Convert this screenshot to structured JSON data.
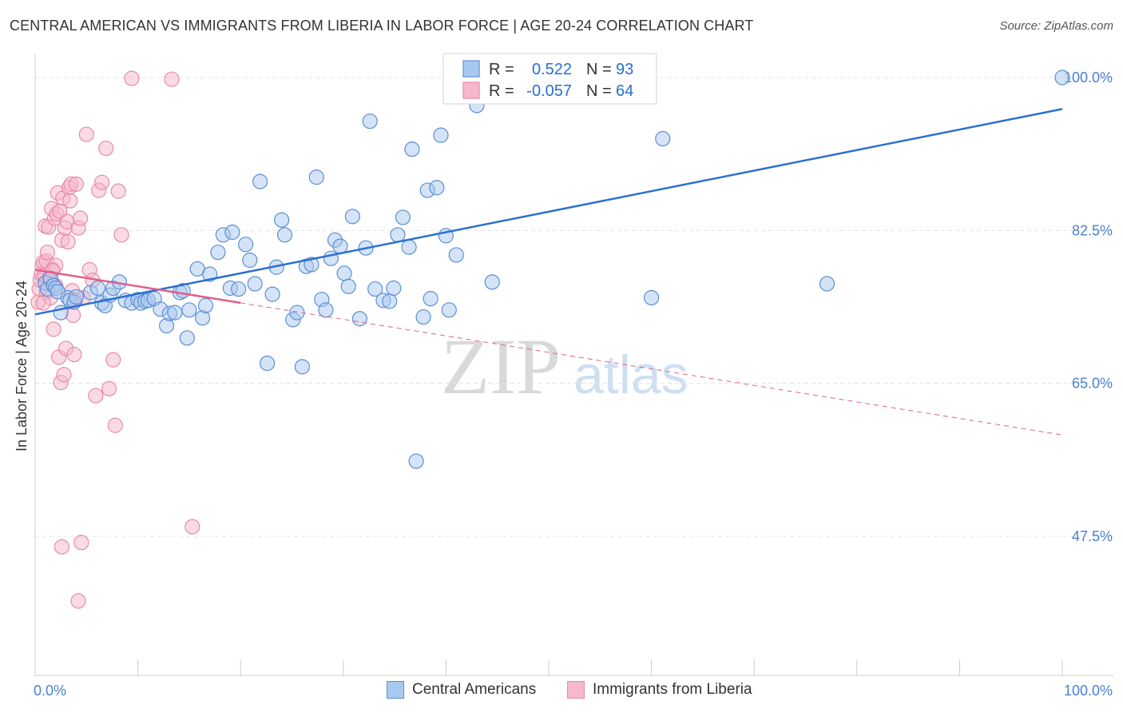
{
  "header": {
    "title": "CENTRAL AMERICAN VS IMMIGRANTS FROM LIBERIA IN LABOR FORCE | AGE 20-24 CORRELATION CHART",
    "source": "Source: ZipAtlas.com"
  },
  "watermark": {
    "part1": "ZIP",
    "part2": "atlas"
  },
  "stats_legend": {
    "rows": [
      {
        "r_label": "R =",
        "r_value": "0.522",
        "n_label": "N =",
        "n_value": "93",
        "color": "#a9c8ee"
      },
      {
        "r_label": "R =",
        "r_value": "-0.057",
        "n_label": "N =",
        "n_value": "64",
        "color": "#f6b8cb"
      }
    ]
  },
  "bottom_legend": {
    "blue_label": "Central Americans",
    "pink_label": "Immigrants from Liberia"
  },
  "colors": {
    "blue_fill": "#a9c8ee",
    "blue_stroke": "#5b8fd6",
    "blue_line": "#2a6fd0",
    "pink_fill": "#f6b8cb",
    "pink_stroke": "#e88aa8",
    "pink_line": "#e0608a",
    "tick_text": "#4a7fd1",
    "grid": "#e3e3e3"
  },
  "chart_data": {
    "type": "scatter",
    "title": "CENTRAL AMERICAN VS IMMIGRANTS FROM LIBERIA IN LABOR FORCE | AGE 20-24 CORRELATION CHART",
    "xlabel": "",
    "ylabel": "In Labor Force | Age 20-24",
    "xlim": [
      0,
      100
    ],
    "ylim": [
      30,
      103
    ],
    "x_tick_labels": [
      "0.0%",
      "100.0%"
    ],
    "y_ticks": [
      47.5,
      65.0,
      82.5,
      100.0
    ],
    "y_tick_labels": [
      "47.5%",
      "65.0%",
      "82.5%",
      "100.0%"
    ],
    "grid": true,
    "legend_position": "top-center",
    "series": [
      {
        "name": "Central Americans",
        "r": 0.522,
        "n": 93,
        "trend": {
          "x": [
            0,
            100
          ],
          "y": [
            72.9,
            96.4
          ]
        },
        "points": [
          [
            1.0,
            76.5
          ],
          [
            1.2,
            75.8
          ],
          [
            1.5,
            77.0
          ],
          [
            1.8,
            76.2
          ],
          [
            2.0,
            75.9
          ],
          [
            2.2,
            75.5
          ],
          [
            2.5,
            73.1
          ],
          [
            3.2,
            74.8
          ],
          [
            3.4,
            74.5
          ],
          [
            3.8,
            74.3
          ],
          [
            4.0,
            74.9
          ],
          [
            5.4,
            75.4
          ],
          [
            6.1,
            75.9
          ],
          [
            6.5,
            74.2
          ],
          [
            6.8,
            73.9
          ],
          [
            7.3,
            75.1
          ],
          [
            7.6,
            75.9
          ],
          [
            8.2,
            76.6
          ],
          [
            8.8,
            74.5
          ],
          [
            9.4,
            74.2
          ],
          [
            10.0,
            74.6
          ],
          [
            10.3,
            74.2
          ],
          [
            10.7,
            74.4
          ],
          [
            11.0,
            74.5
          ],
          [
            11.6,
            74.7
          ],
          [
            12.2,
            73.5
          ],
          [
            12.8,
            71.6
          ],
          [
            13.1,
            73.0
          ],
          [
            13.6,
            73.1
          ],
          [
            14.1,
            75.4
          ],
          [
            14.4,
            75.6
          ],
          [
            14.8,
            70.2
          ],
          [
            15.0,
            73.4
          ],
          [
            15.8,
            78.1
          ],
          [
            16.3,
            72.5
          ],
          [
            16.6,
            73.9
          ],
          [
            17.0,
            77.5
          ],
          [
            17.8,
            80.0
          ],
          [
            18.3,
            82.0
          ],
          [
            19.2,
            82.3
          ],
          [
            19.0,
            75.9
          ],
          [
            19.8,
            75.8
          ],
          [
            20.5,
            80.9
          ],
          [
            20.9,
            79.1
          ],
          [
            21.4,
            76.4
          ],
          [
            21.9,
            88.1
          ],
          [
            22.6,
            67.3
          ],
          [
            23.1,
            75.2
          ],
          [
            23.5,
            78.3
          ],
          [
            24.0,
            83.7
          ],
          [
            24.3,
            82.0
          ],
          [
            25.1,
            72.3
          ],
          [
            25.5,
            73.1
          ],
          [
            26.0,
            66.9
          ],
          [
            26.4,
            78.4
          ],
          [
            26.9,
            78.6
          ],
          [
            27.4,
            88.6
          ],
          [
            27.9,
            74.6
          ],
          [
            28.3,
            73.4
          ],
          [
            28.8,
            79.3
          ],
          [
            29.2,
            81.4
          ],
          [
            29.7,
            80.7
          ],
          [
            30.1,
            77.6
          ],
          [
            30.5,
            76.1
          ],
          [
            30.9,
            84.1
          ],
          [
            31.6,
            72.4
          ],
          [
            32.2,
            80.5
          ],
          [
            32.6,
            95.0
          ],
          [
            33.1,
            75.8
          ],
          [
            33.9,
            74.5
          ],
          [
            34.5,
            74.4
          ],
          [
            34.9,
            75.9
          ],
          [
            35.3,
            82.0
          ],
          [
            35.8,
            84.0
          ],
          [
            36.4,
            80.6
          ],
          [
            36.7,
            91.8
          ],
          [
            37.1,
            56.1
          ],
          [
            37.8,
            72.6
          ],
          [
            38.2,
            87.1
          ],
          [
            38.5,
            74.7
          ],
          [
            39.1,
            87.4
          ],
          [
            39.5,
            93.4
          ],
          [
            40.0,
            81.9
          ],
          [
            40.3,
            73.4
          ],
          [
            41.0,
            79.7
          ],
          [
            41.6,
            97.8
          ],
          [
            42.0,
            99.5
          ],
          [
            43.0,
            96.8
          ],
          [
            44.5,
            76.6
          ],
          [
            56.5,
            99.9
          ],
          [
            60.0,
            74.8
          ],
          [
            61.1,
            93.0
          ],
          [
            77.1,
            76.4
          ],
          [
            100.0,
            100.0
          ]
        ]
      },
      {
        "name": "Immigrants from Liberia",
        "r": -0.057,
        "n": 64,
        "trend": {
          "x": [
            0,
            100
          ],
          "y": [
            78.0,
            59.1
          ]
        },
        "trend_solid_until": 20,
        "points": [
          [
            0.3,
            74.3
          ],
          [
            0.4,
            75.8
          ],
          [
            0.5,
            76.8
          ],
          [
            0.6,
            77.5
          ],
          [
            0.7,
            78.4
          ],
          [
            0.8,
            78.9
          ],
          [
            0.9,
            77.4
          ],
          [
            1.0,
            83.0
          ],
          [
            1.1,
            79.0
          ],
          [
            1.2,
            80.0
          ],
          [
            1.3,
            82.9
          ],
          [
            1.4,
            77.0
          ],
          [
            1.5,
            74.8
          ],
          [
            1.6,
            85.0
          ],
          [
            1.7,
            78.0
          ],
          [
            1.8,
            71.2
          ],
          [
            1.9,
            83.9
          ],
          [
            2.0,
            78.5
          ],
          [
            2.1,
            84.4
          ],
          [
            2.2,
            86.8
          ],
          [
            2.3,
            68.0
          ],
          [
            2.4,
            84.7
          ],
          [
            2.5,
            65.1
          ],
          [
            2.6,
            81.4
          ],
          [
            2.7,
            86.2
          ],
          [
            2.8,
            66.0
          ],
          [
            2.9,
            82.8
          ],
          [
            3.0,
            69.0
          ],
          [
            3.1,
            83.5
          ],
          [
            3.2,
            81.2
          ],
          [
            3.3,
            87.4
          ],
          [
            3.4,
            85.9
          ],
          [
            3.5,
            87.8
          ],
          [
            3.6,
            75.6
          ],
          [
            3.7,
            72.8
          ],
          [
            3.8,
            68.3
          ],
          [
            3.9,
            74.5
          ],
          [
            4.0,
            87.8
          ],
          [
            4.2,
            82.8
          ],
          [
            4.4,
            83.9
          ],
          [
            4.7,
            74.8
          ],
          [
            5.0,
            93.5
          ],
          [
            5.3,
            78.0
          ],
          [
            5.6,
            76.8
          ],
          [
            5.9,
            63.6
          ],
          [
            6.2,
            87.1
          ],
          [
            6.5,
            88.0
          ],
          [
            6.9,
            91.9
          ],
          [
            7.2,
            64.4
          ],
          [
            7.6,
            67.7
          ],
          [
            7.8,
            60.2
          ],
          [
            8.1,
            87.0
          ],
          [
            8.4,
            82.0
          ],
          [
            9.4,
            99.9
          ],
          [
            13.3,
            99.8
          ],
          [
            15.3,
            48.6
          ],
          [
            2.6,
            46.3
          ],
          [
            4.5,
            46.8
          ],
          [
            4.2,
            40.1
          ],
          [
            1.7,
            77.9
          ],
          [
            2.0,
            76.2
          ],
          [
            1.4,
            76.9
          ],
          [
            1.1,
            75.5
          ],
          [
            0.8,
            74.2
          ]
        ]
      }
    ]
  }
}
